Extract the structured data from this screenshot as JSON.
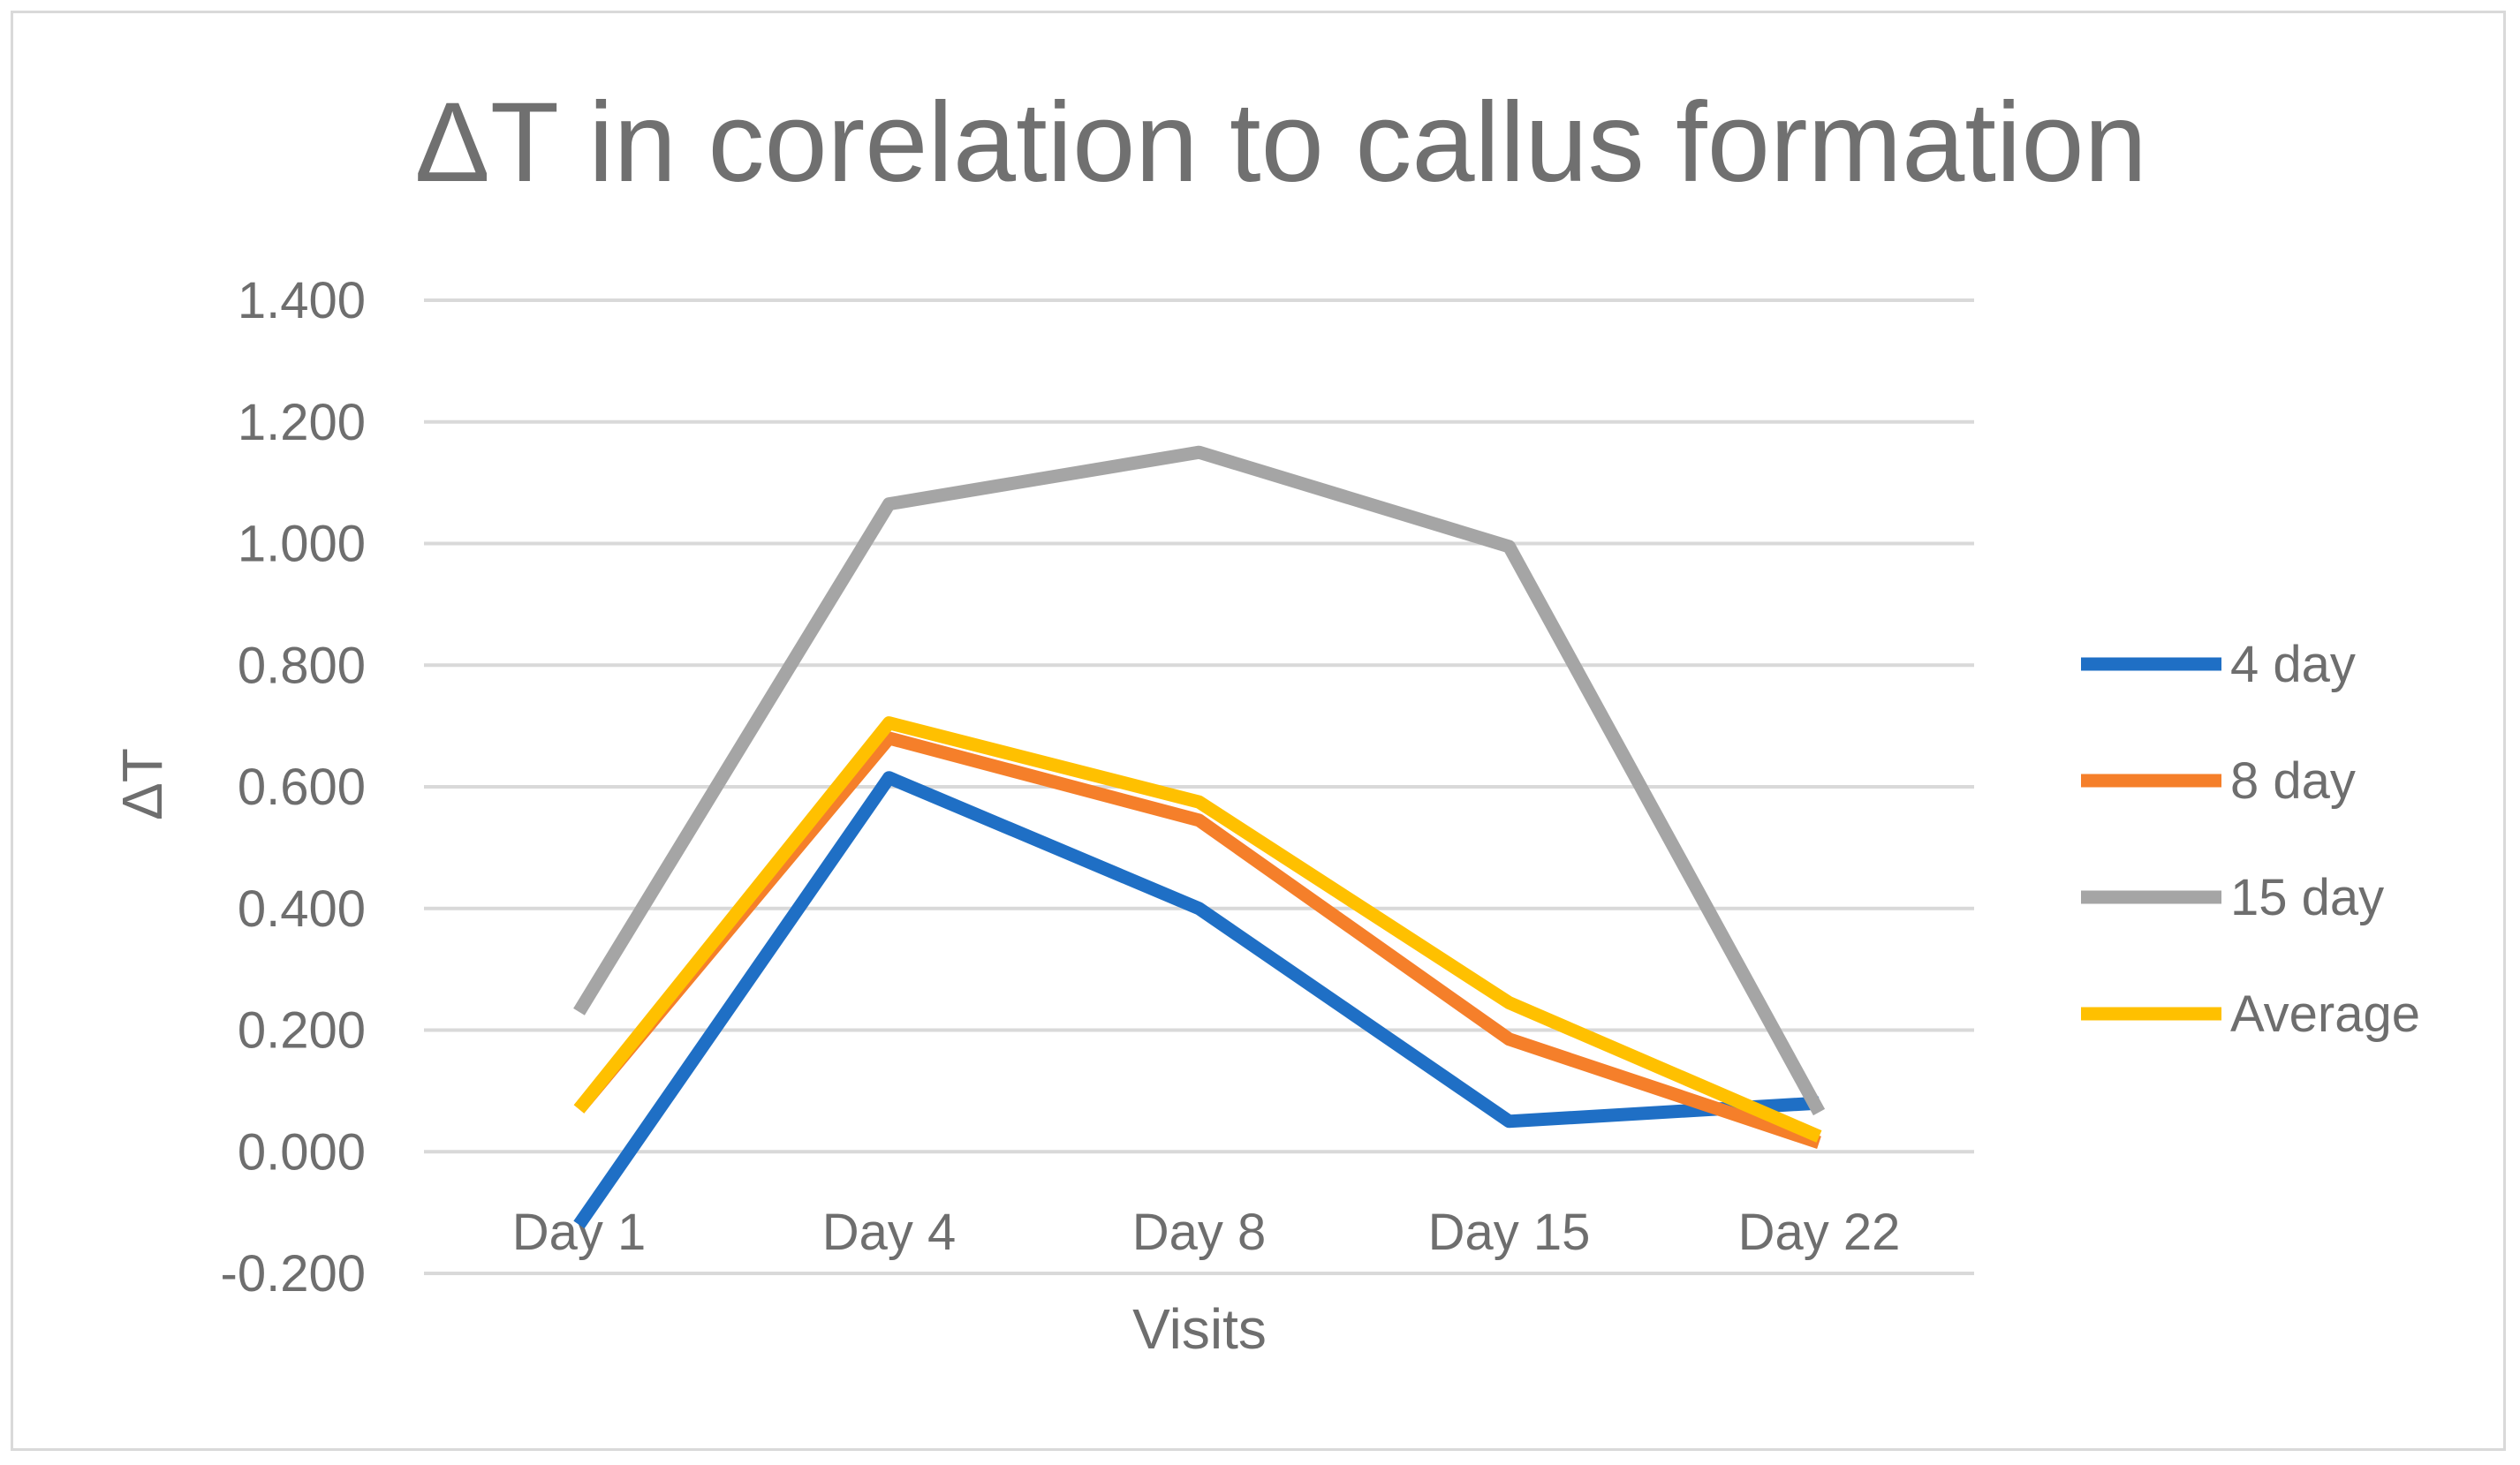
{
  "chart_data": {
    "type": "line",
    "title": "ΔT in corelation to callus formation",
    "xlabel": "Visits",
    "ylabel": "ΔT",
    "categories": [
      "Day 1",
      "Day 4",
      "Day 8",
      "Day 15",
      "Day 22"
    ],
    "ylim": [
      -0.2,
      1.4
    ],
    "ytick_values": [
      -0.2,
      0,
      0.2,
      0.4,
      0.6,
      0.8,
      1.0,
      1.2,
      1.4
    ],
    "ytick_labels": [
      "-0.200",
      "0.000",
      "0.200",
      "0.400",
      "0.600",
      "0.800",
      "1.000",
      "1.200",
      "1.400"
    ],
    "grid": true,
    "legend_position": "right",
    "series": [
      {
        "name": "4 day",
        "color": "#1f6fc5",
        "values": [
          -0.12,
          0.615,
          0.4,
          0.05,
          0.08
        ]
      },
      {
        "name": "8 day",
        "color": "#f57f2a",
        "values": [
          0.07,
          0.68,
          0.545,
          0.185,
          0.015
        ]
      },
      {
        "name": "15 day",
        "color": "#a5a5a5",
        "values": [
          0.23,
          1.065,
          1.15,
          0.995,
          0.065
        ]
      },
      {
        "name": "Average",
        "color": "#ffc000",
        "values": [
          0.07,
          0.705,
          0.575,
          0.245,
          0.025
        ]
      }
    ]
  }
}
